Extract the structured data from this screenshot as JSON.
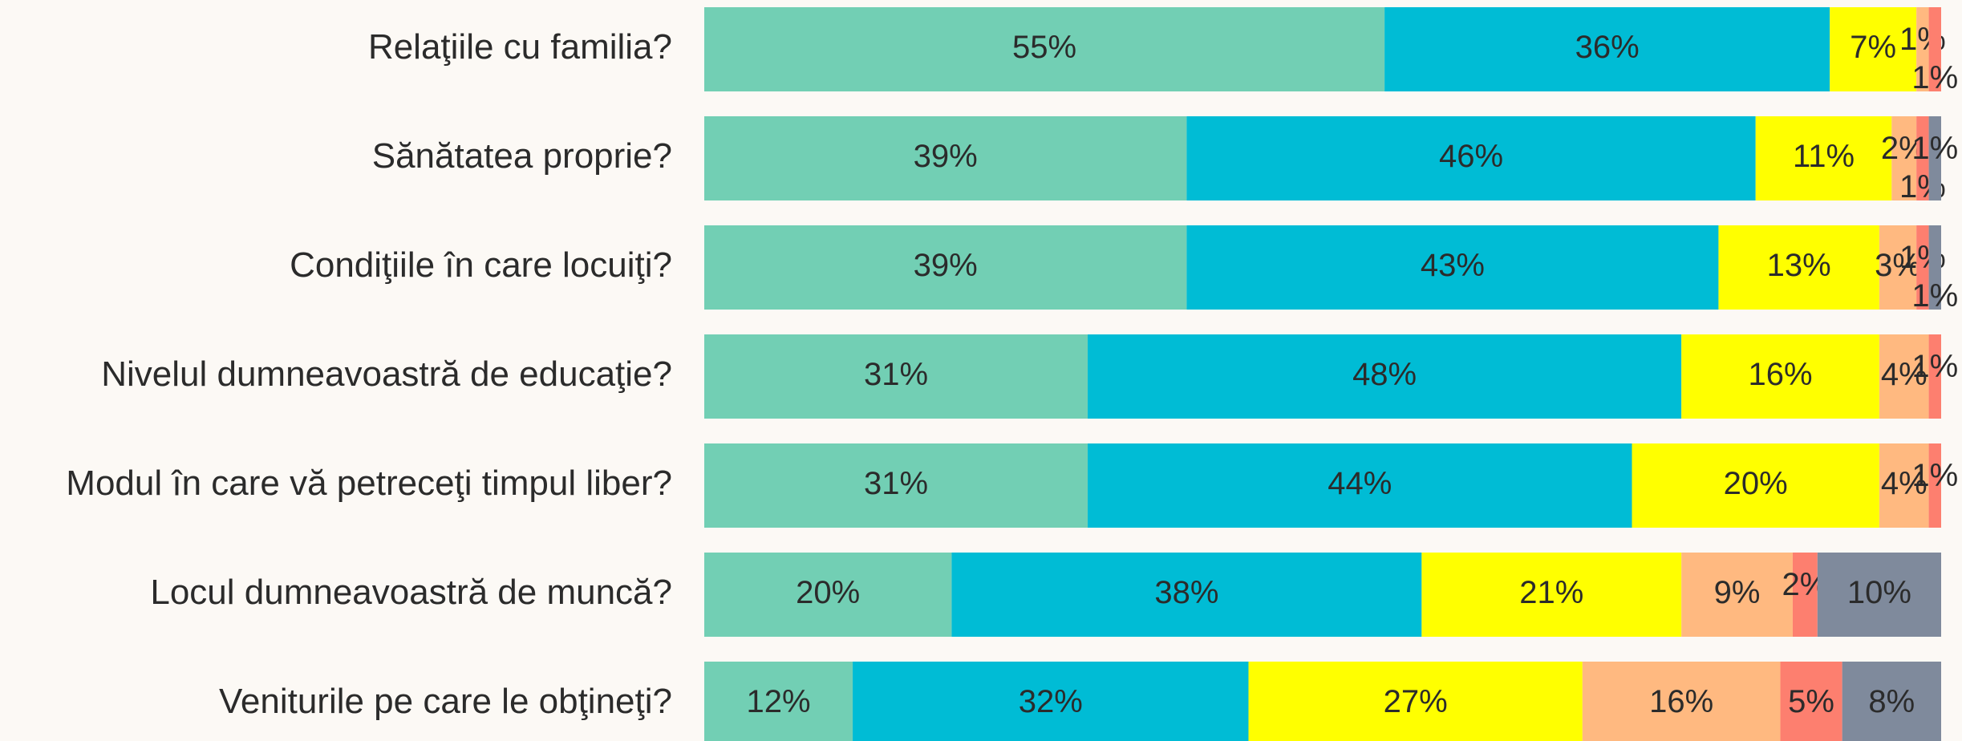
{
  "chart_data": {
    "type": "stacked-bar-horizontal",
    "categories": [
      "Relaţiile cu familia?",
      "Sănătatea proprie?",
      "Condiţiile în care locuiţi?",
      "Nivelul dumneavoastră de educaţie?",
      "Modul în care vă petreceţi timpul liber?",
      "Locul dumneavoastră de muncă?",
      "Veniturile pe care le obţineţi?"
    ],
    "xlim": [
      0,
      100
    ],
    "series": [
      {
        "color": "#72cfb4",
        "values": [
          55,
          39,
          39,
          31,
          31,
          20,
          12
        ],
        "value_labels": [
          "55%",
          "39%",
          "39%",
          "31%",
          "31%",
          "20%",
          "12%"
        ]
      },
      {
        "color": "#00bcd5",
        "values": [
          36,
          46,
          43,
          48,
          44,
          38,
          32
        ],
        "value_labels": [
          "36%",
          "46%",
          "43%",
          "48%",
          "44%",
          "38%",
          "32%"
        ]
      },
      {
        "color": "#ffff00",
        "values": [
          7,
          11,
          13,
          16,
          20,
          21,
          27
        ],
        "value_labels": [
          "7%",
          "11%",
          "13%",
          "16%",
          "20%",
          "21%",
          "27%"
        ]
      },
      {
        "color": "#ffb980",
        "values": [
          1,
          2,
          3,
          4,
          4,
          9,
          16
        ],
        "value_labels": [
          "1%",
          "2%",
          "3%",
          "4%",
          "4%",
          "9%",
          "16%"
        ]
      },
      {
        "color": "#fd7f6f",
        "values": [
          1,
          1,
          1,
          1,
          1,
          2,
          5
        ],
        "value_labels": [
          "1%",
          "1%",
          "1%",
          "1%",
          "1%",
          "2%",
          "5%"
        ]
      },
      {
        "color": "#7f8a9c",
        "values": [
          null,
          1,
          1,
          null,
          null,
          10,
          8
        ],
        "value_labels": [
          null,
          "1%",
          "1%",
          null,
          null,
          "10%",
          "8%"
        ]
      }
    ]
  }
}
